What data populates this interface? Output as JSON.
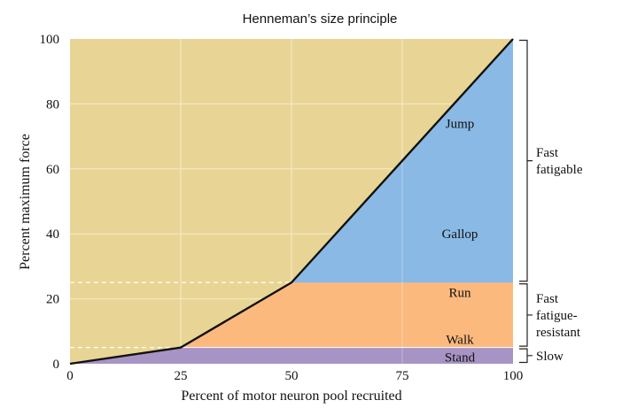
{
  "chart_data": {
    "type": "area",
    "title": "Henneman’s size principle",
    "xlabel": "Percent of motor neuron pool recruited",
    "ylabel": "Percent maximum force",
    "xlim": [
      0,
      100
    ],
    "ylim": [
      0,
      100
    ],
    "xticks": [
      "0",
      "25",
      "50",
      "75",
      "100"
    ],
    "yticks": [
      "0",
      "20",
      "40",
      "60",
      "80",
      "100"
    ],
    "grid": true,
    "series": [
      {
        "name": "",
        "x": [
          0,
          25,
          50,
          100
        ],
        "y": [
          0,
          5,
          25,
          100
        ]
      }
    ],
    "thresholds": [
      5,
      25
    ],
    "activities": [
      {
        "label": "Stand",
        "x": 88,
        "y": 2
      },
      {
        "label": "Walk",
        "x": 88,
        "y": 7.5
      },
      {
        "label": "Run",
        "x": 88,
        "y": 22
      },
      {
        "label": "Gallop",
        "x": 88,
        "y": 40
      },
      {
        "label": "Jump",
        "x": 88,
        "y": 74
      }
    ],
    "fiber_types": [
      {
        "lines": [
          "Slow"
        ],
        "range": [
          0,
          5
        ]
      },
      {
        "lines": [
          "Fast",
          "fatigue-",
          "resistant"
        ],
        "range": [
          5,
          25
        ]
      },
      {
        "lines": [
          "Fast",
          "fatigable"
        ],
        "range": [
          25,
          100
        ]
      }
    ],
    "colors": {
      "background": "#E8D595",
      "slow": "#A793C4",
      "fatigue_resistant": "#FCB97E",
      "fatigable": "#8AB9E5",
      "curve": "#111111",
      "gridline": "#F6EBC9"
    }
  }
}
